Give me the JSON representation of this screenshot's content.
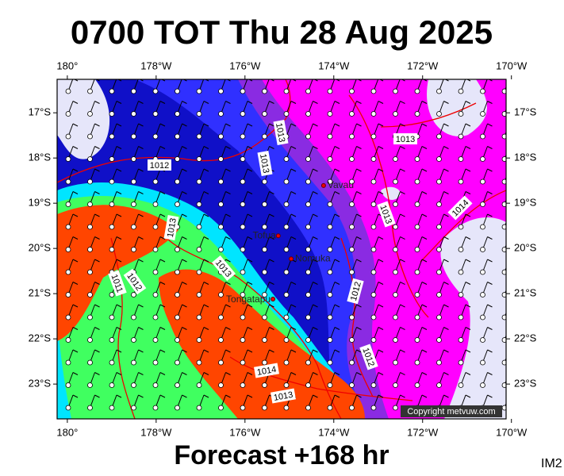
{
  "title": "0700 TOT Thu 28 Aug 2025",
  "footer": "Forecast +168 hr",
  "image_id": "IM2",
  "copyright": "Copyright metvuw.com",
  "map": {
    "lonlim": [
      179.77,
      189.88
    ],
    "latlim": [
      -16.26,
      -23.77
    ],
    "lon_ticks": [
      {
        "value": 180,
        "label": "180°"
      },
      {
        "value": 182,
        "label": "178°W"
      },
      {
        "value": 184,
        "label": "176°W"
      },
      {
        "value": 186,
        "label": "174°W"
      },
      {
        "value": 188,
        "label": "172°W"
      },
      {
        "value": 190,
        "label": "170°W"
      }
    ],
    "lat_ticks": [
      {
        "value": -17,
        "label": "17°S"
      },
      {
        "value": -18,
        "label": "18°S"
      },
      {
        "value": -19,
        "label": "19°S"
      },
      {
        "value": -20,
        "label": "20°S"
      },
      {
        "value": -21,
        "label": "21°S"
      },
      {
        "value": -22,
        "label": "22°S"
      },
      {
        "value": -23,
        "label": "23°S"
      }
    ],
    "places": [
      {
        "name": "Vavau",
        "lon": 185.77,
        "lat": -18.61
      },
      {
        "name": "Tofua",
        "lon": 184.75,
        "lat": -19.72
      },
      {
        "name": "Nomuka",
        "lon": 185.04,
        "lat": -20.23
      },
      {
        "name": "Tongatapu",
        "lon": 184.63,
        "lat": -21.12
      }
    ],
    "isobar_labels": [
      1012,
      1013,
      1013,
      1013,
      1013,
      1013,
      1011,
      1012,
      1013,
      1014,
      1012,
      1012,
      1014,
      1013
    ]
  }
}
